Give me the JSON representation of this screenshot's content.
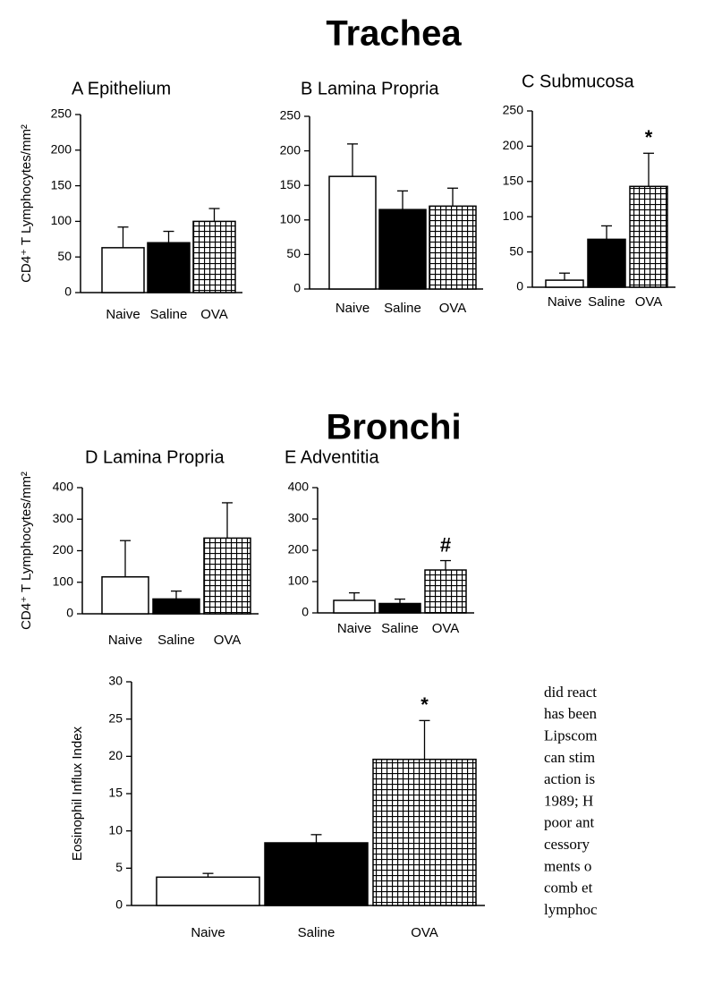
{
  "headings": [
    "Trachea",
    "Bronchi"
  ],
  "chart_data": [
    {
      "type": "bar",
      "title": "A Epithelium",
      "y_label": "CD4⁺ T Lymphocytes/mm²",
      "categories": [
        "Naive",
        "Saline",
        "OVA"
      ],
      "values": [
        63,
        70,
        100
      ],
      "errors": [
        29,
        16,
        18
      ],
      "bar_styles": [
        "open",
        "solid",
        "checkered"
      ],
      "significance": [
        null,
        null,
        null
      ],
      "ylim": [
        0,
        250
      ],
      "yticks": [
        0,
        50,
        100,
        150,
        200,
        250
      ]
    },
    {
      "type": "bar",
      "title": "B Lamina Propria",
      "categories": [
        "Naive",
        "Saline",
        "OVA"
      ],
      "values": [
        163,
        115,
        120
      ],
      "errors": [
        47,
        27,
        26
      ],
      "bar_styles": [
        "open",
        "solid",
        "checkered"
      ],
      "significance": [
        null,
        null,
        null
      ],
      "ylim": [
        0,
        250
      ],
      "yticks": [
        0,
        50,
        100,
        150,
        200,
        250
      ]
    },
    {
      "type": "bar",
      "title": "C Submucosa",
      "categories": [
        "Naive",
        "Saline",
        "OVA"
      ],
      "values": [
        10,
        68,
        143
      ],
      "errors": [
        10,
        19,
        47
      ],
      "bar_styles": [
        "open",
        "solid",
        "checkered"
      ],
      "significance": [
        null,
        null,
        "*"
      ],
      "ylim": [
        0,
        250
      ],
      "yticks": [
        0,
        50,
        100,
        150,
        200,
        250
      ]
    },
    {
      "type": "bar",
      "title": "D Lamina Propria",
      "y_label": "CD4⁺ T Lymphocytes/mm²",
      "categories": [
        "Naive",
        "Saline",
        "OVA"
      ],
      "values": [
        117,
        47,
        240
      ],
      "errors": [
        115,
        25,
        112
      ],
      "bar_styles": [
        "open",
        "solid",
        "checkered"
      ],
      "significance": [
        null,
        null,
        null
      ],
      "ylim": [
        0,
        400
      ],
      "yticks": [
        0,
        100,
        200,
        300,
        400
      ]
    },
    {
      "type": "bar",
      "title": "E Adventitia",
      "categories": [
        "Naive",
        "Saline",
        "OVA"
      ],
      "values": [
        40,
        30,
        137
      ],
      "errors": [
        24,
        14,
        30
      ],
      "bar_styles": [
        "open",
        "solid",
        "checkered"
      ],
      "significance": [
        null,
        null,
        "#"
      ],
      "ylim": [
        0,
        400
      ],
      "yticks": [
        0,
        100,
        200,
        300,
        400
      ]
    },
    {
      "type": "bar",
      "y_label": "Eosinophil Influx Index",
      "categories": [
        "Naive",
        "Saline",
        "OVA"
      ],
      "values": [
        3.8,
        8.4,
        19.6
      ],
      "errors": [
        0.5,
        1.1,
        5.2
      ],
      "bar_styles": [
        "open",
        "solid",
        "checkered"
      ],
      "significance": [
        null,
        null,
        "*"
      ],
      "ylim": [
        0,
        30
      ],
      "yticks": [
        0,
        5,
        10,
        15,
        20,
        25,
        30
      ]
    }
  ],
  "text_fragment": [
    "did react",
    "has been",
    "Lipscom",
    "can stim",
    "action is",
    "1989; H",
    "poor ant",
    "cessory",
    "ments o",
    "comb et",
    "lymphoc"
  ]
}
